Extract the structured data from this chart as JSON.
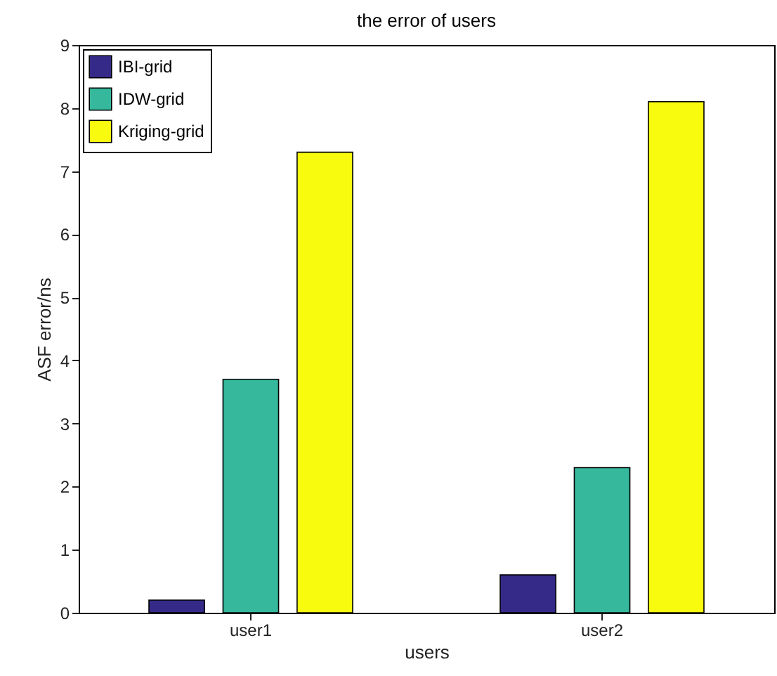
{
  "chart_data": {
    "type": "bar",
    "title": "the error of users",
    "xlabel": "users",
    "ylabel": "ASF error/ns",
    "categories": [
      "user1",
      "user2"
    ],
    "series": [
      {
        "name": "IBI-grid",
        "color": "#352a87",
        "values": [
          0.2,
          0.6
        ]
      },
      {
        "name": "IDW-grid",
        "color": "#36b89d",
        "values": [
          3.7,
          2.3
        ]
      },
      {
        "name": "Kriging-grid",
        "color": "#f9fb0e",
        "values": [
          7.3,
          8.1
        ]
      }
    ],
    "ylim": [
      0,
      9
    ],
    "yticks": [
      0,
      1,
      2,
      3,
      4,
      5,
      6,
      7,
      8,
      9
    ],
    "legend": "top left"
  }
}
